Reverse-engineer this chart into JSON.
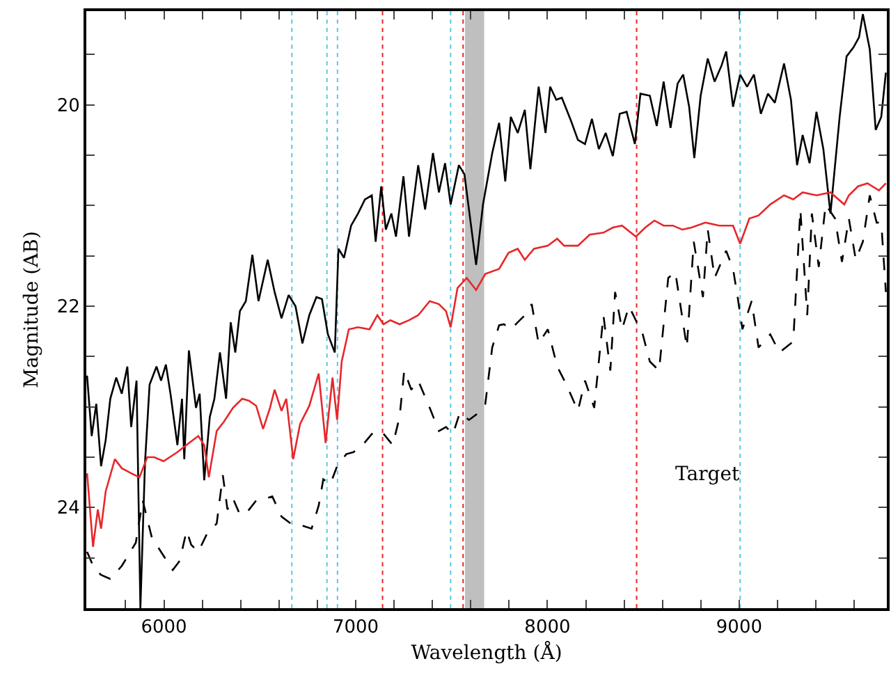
{
  "chart_data": {
    "type": "line",
    "xlabel": "Wavelength (Å)",
    "ylabel": "Magnitude (AB)",
    "xlim": [
      5595,
      9770
    ],
    "ylim": [
      25,
      19.07
    ],
    "xticks": [
      {
        "value": 5600,
        "label": null
      },
      {
        "value": 5800,
        "label": null
      },
      6000,
      {
        "value": 6200,
        "label": null
      },
      {
        "value": 6400,
        "label": null
      },
      {
        "value": 6600,
        "label": null
      },
      {
        "value": 6800,
        "label": null
      },
      7000,
      {
        "value": 7200,
        "label": null
      },
      {
        "value": 7400,
        "label": null
      },
      {
        "value": 7600,
        "label": null
      },
      {
        "value": 7800,
        "label": null
      },
      8000,
      {
        "value": 8200,
        "label": null
      },
      {
        "value": 8400,
        "label": null
      },
      {
        "value": 8600,
        "label": null
      },
      {
        "value": 8800,
        "label": null
      },
      9000,
      {
        "value": 9200,
        "label": null
      },
      {
        "value": 9400,
        "label": null
      },
      {
        "value": 9600,
        "label": null
      }
    ],
    "yticks": [
      {
        "value": 19.5,
        "label": null
      },
      20,
      {
        "value": 20.5,
        "label": null
      },
      {
        "value": 21,
        "label": null
      },
      {
        "value": 21.5,
        "label": null
      },
      22,
      {
        "value": 22.5,
        "label": null
      },
      {
        "value": 23,
        "label": null
      },
      {
        "value": 23.5,
        "label": null
      },
      24,
      {
        "value": 24.5,
        "label": null
      }
    ],
    "grid": false,
    "marker": "none",
    "annotations": [
      "Target"
    ],
    "ref_lines": [
      {
        "axis": "x",
        "value": 6667,
        "color": "#5bc8e0",
        "line_style": "dotted"
      },
      {
        "axis": "x",
        "value": 6850,
        "color": "#5bc8e0",
        "line_style": "dotted"
      },
      {
        "axis": "x",
        "value": 6905,
        "color": "#5bc8e0",
        "line_style": "dotted"
      },
      {
        "axis": "x",
        "value": 7140,
        "color": "#e8262a",
        "line_style": "dotted"
      },
      {
        "axis": "x",
        "value": 7495,
        "color": "#5bc8e0",
        "line_style": "dotted"
      },
      {
        "axis": "x",
        "value": 7560,
        "color": "#e8262a",
        "line_style": "dotted"
      },
      {
        "axis": "x",
        "value": 8465,
        "color": "#e8262a",
        "line_style": "dotted"
      },
      {
        "axis": "x",
        "value": 9005,
        "color": "#5bc8e0",
        "line_style": "dotted"
      }
    ],
    "bands": [
      {
        "axis": "x",
        "from": 7570,
        "to": 7670,
        "color": "#000000"
      }
    ],
    "series": [
      {
        "color": "#000000",
        "line_style": "solid",
        "x": [
          5599,
          5623,
          5647,
          5672,
          5696,
          5720,
          5751,
          5780,
          5809,
          5829,
          5857,
          5877,
          5901,
          5925,
          5961,
          5985,
          6010,
          6034,
          6070,
          6094,
          6106,
          6130,
          6167,
          6186,
          6210,
          6239,
          6263,
          6292,
          6324,
          6348,
          6372,
          6396,
          6427,
          6461,
          6493,
          6541,
          6577,
          6613,
          6650,
          6686,
          6722,
          6758,
          6795,
          6824,
          6855,
          6891,
          6910,
          6939,
          6976,
          7012,
          7048,
          7084,
          7104,
          7133,
          7157,
          7186,
          7210,
          7249,
          7278,
          7326,
          7362,
          7403,
          7434,
          7466,
          7495,
          7538,
          7567,
          7628,
          7664,
          7712,
          7748,
          7780,
          7809,
          7845,
          7882,
          7911,
          7954,
          7990,
          8014,
          8046,
          8075,
          8123,
          8159,
          8196,
          8232,
          8268,
          8304,
          8341,
          8377,
          8413,
          8456,
          8485,
          8534,
          8570,
          8606,
          8642,
          8679,
          8708,
          8739,
          8766,
          8799,
          8836,
          8872,
          8908,
          8932,
          8968,
          9005,
          9041,
          9077,
          9113,
          9150,
          9186,
          9234,
          9270,
          9302,
          9331,
          9367,
          9403,
          9439,
          9476,
          9524,
          9560,
          9596,
          9625,
          9645,
          9681,
          9712,
          9741,
          9765
        ],
        "values": [
          22.69,
          23.29,
          22.97,
          23.59,
          23.33,
          22.92,
          22.71,
          22.87,
          22.6,
          23.2,
          22.74,
          25.0,
          23.56,
          22.78,
          22.6,
          22.74,
          22.58,
          22.87,
          23.38,
          22.92,
          23.52,
          22.44,
          23.01,
          22.87,
          23.73,
          23.1,
          22.92,
          22.46,
          22.92,
          22.16,
          22.46,
          22.05,
          21.95,
          21.49,
          21.95,
          21.54,
          21.86,
          22.12,
          21.89,
          22.0,
          22.37,
          22.09,
          21.91,
          21.93,
          22.28,
          22.46,
          21.43,
          21.52,
          21.2,
          21.08,
          20.94,
          20.9,
          21.36,
          20.81,
          21.24,
          21.08,
          21.31,
          20.71,
          21.31,
          20.6,
          21.04,
          20.48,
          20.87,
          20.58,
          20.99,
          20.6,
          20.69,
          21.59,
          20.99,
          20.48,
          20.18,
          20.76,
          20.12,
          20.28,
          20.05,
          20.64,
          19.82,
          20.28,
          19.82,
          19.95,
          19.93,
          20.16,
          20.35,
          20.39,
          20.14,
          20.44,
          20.28,
          20.51,
          20.09,
          20.07,
          20.39,
          19.89,
          19.91,
          20.21,
          19.77,
          20.23,
          19.79,
          19.7,
          20.02,
          20.53,
          19.91,
          19.54,
          19.77,
          19.61,
          19.47,
          20.02,
          19.7,
          19.82,
          19.7,
          20.09,
          19.89,
          19.98,
          19.59,
          19.95,
          20.6,
          20.3,
          20.58,
          20.07,
          20.44,
          21.08,
          20.12,
          19.52,
          19.43,
          19.33,
          19.1,
          19.45,
          20.25,
          20.12,
          19.68
        ]
      },
      {
        "color": "#e8262a",
        "line_style": "solid",
        "x": [
          5599,
          5630,
          5655,
          5672,
          5696,
          5744,
          5780,
          5829,
          5872,
          5913,
          5949,
          5998,
          6070,
          6130,
          6179,
          6210,
          6234,
          6275,
          6312,
          6360,
          6408,
          6444,
          6481,
          6517,
          6553,
          6577,
          6613,
          6638,
          6674,
          6710,
          6758,
          6807,
          6843,
          6879,
          6903,
          6927,
          6964,
          7012,
          7072,
          7113,
          7145,
          7181,
          7229,
          7278,
          7326,
          7386,
          7434,
          7471,
          7495,
          7531,
          7579,
          7628,
          7676,
          7748,
          7797,
          7845,
          7882,
          7930,
          8002,
          8051,
          8087,
          8159,
          8220,
          8292,
          8341,
          8389,
          8461,
          8510,
          8558,
          8606,
          8654,
          8703,
          8751,
          8824,
          8896,
          8968,
          9005,
          9053,
          9101,
          9162,
          9234,
          9282,
          9331,
          9403,
          9476,
          9548,
          9572,
          9620,
          9669,
          9729,
          9765
        ],
        "values": [
          23.66,
          24.39,
          24.02,
          24.21,
          23.84,
          23.52,
          23.61,
          23.66,
          23.7,
          23.5,
          23.5,
          23.54,
          23.45,
          23.36,
          23.29,
          23.38,
          23.7,
          23.24,
          23.15,
          23.01,
          22.92,
          22.94,
          22.99,
          23.22,
          23.01,
          22.83,
          23.04,
          22.92,
          23.52,
          23.17,
          22.99,
          22.67,
          23.36,
          22.71,
          23.13,
          22.55,
          22.23,
          22.21,
          22.23,
          22.09,
          22.18,
          22.14,
          22.18,
          22.14,
          22.09,
          21.95,
          21.98,
          22.05,
          22.21,
          21.82,
          21.72,
          21.84,
          21.68,
          21.63,
          21.47,
          21.43,
          21.54,
          21.43,
          21.4,
          21.33,
          21.4,
          21.4,
          21.29,
          21.27,
          21.22,
          21.2,
          21.31,
          21.22,
          21.15,
          21.2,
          21.2,
          21.24,
          21.22,
          21.17,
          21.2,
          21.2,
          21.38,
          21.13,
          21.1,
          20.99,
          20.9,
          20.94,
          20.87,
          20.9,
          20.87,
          20.99,
          20.9,
          20.81,
          20.78,
          20.85,
          20.78
        ]
      },
      {
        "color": "#000000",
        "line_style": "dashed",
        "x": [
          5599,
          5635,
          5672,
          5720,
          5780,
          5853,
          5889,
          5937,
          5998,
          6046,
          6082,
          6118,
          6142,
          6179,
          6227,
          6275,
          6307,
          6331,
          6360,
          6396,
          6432,
          6481,
          6529,
          6565,
          6613,
          6662,
          6722,
          6770,
          6807,
          6831,
          6867,
          6903,
          6951,
          6988,
          7036,
          7084,
          7133,
          7193,
          7229,
          7253,
          7290,
          7326,
          7386,
          7434,
          7471,
          7507,
          7543,
          7591,
          7640,
          7676,
          7712,
          7748,
          7773,
          7809,
          7845,
          7882,
          7918,
          7954,
          8002,
          8051,
          8099,
          8159,
          8196,
          8244,
          8292,
          8328,
          8353,
          8389,
          8425,
          8461,
          8497,
          8534,
          8582,
          8630,
          8667,
          8727,
          8763,
          8811,
          8836,
          8872,
          8932,
          8968,
          8992,
          9017,
          9065,
          9101,
          9162,
          9210,
          9282,
          9319,
          9355,
          9379,
          9415,
          9451,
          9500,
          9536,
          9572,
          9608,
          9645,
          9681,
          9717,
          9741,
          9765
        ],
        "values": [
          24.44,
          24.6,
          24.67,
          24.71,
          24.58,
          24.35,
          23.93,
          24.3,
          24.48,
          24.62,
          24.53,
          24.23,
          24.37,
          24.44,
          24.25,
          24.16,
          23.68,
          24.02,
          23.91,
          24.07,
          24.05,
          23.93,
          23.91,
          23.89,
          24.09,
          24.16,
          24.18,
          24.21,
          23.98,
          23.72,
          23.77,
          23.59,
          23.47,
          23.45,
          23.38,
          23.27,
          23.24,
          23.38,
          23.1,
          22.64,
          22.83,
          22.74,
          23.01,
          23.24,
          23.2,
          23.27,
          23.06,
          23.13,
          23.06,
          22.97,
          22.41,
          22.19,
          22.18,
          22.23,
          22.16,
          22.09,
          21.98,
          22.37,
          22.23,
          22.6,
          22.78,
          23.04,
          22.74,
          23.01,
          22.09,
          22.64,
          21.86,
          22.23,
          22.0,
          22.14,
          22.28,
          22.55,
          22.64,
          21.72,
          21.66,
          22.41,
          21.36,
          21.91,
          21.24,
          21.72,
          21.45,
          21.63,
          21.91,
          22.23,
          21.95,
          22.41,
          22.28,
          22.46,
          22.35,
          21.04,
          22.09,
          21.08,
          21.61,
          20.99,
          21.13,
          21.56,
          21.13,
          21.54,
          21.36,
          20.9,
          21.17,
          21.17,
          21.86
        ]
      }
    ]
  }
}
